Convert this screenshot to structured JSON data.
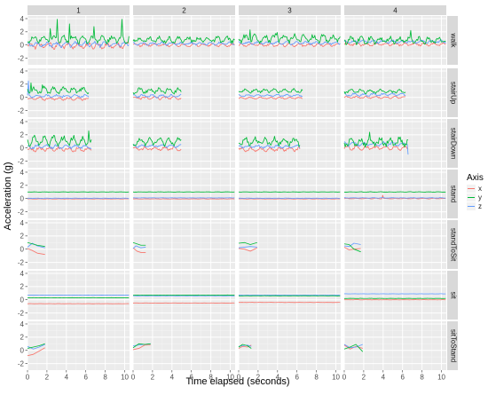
{
  "colors": {
    "x": "#F8766D",
    "y": "#00BA38",
    "z": "#619CFF",
    "panel": "#EBEBEB",
    "strip": "#D9D9D9",
    "grid_major": "#FFFFFF",
    "grid_minor": "#F5F5F5",
    "tick": "#4d4d4d"
  },
  "chart_data": {
    "type": "line",
    "facet_type": "grid",
    "xlabel": "Time elapsed (seconds)",
    "ylabel": "Acceleration (g)",
    "xlim": [
      0,
      10.5
    ],
    "ylim": [
      -3,
      4.4
    ],
    "x_ticks": [
      "0",
      "2",
      "4",
      "6",
      "8",
      "10"
    ],
    "y_ticks": [
      "-2",
      "0",
      "2",
      "4"
    ],
    "grid": true,
    "legend_position": "right",
    "legend": {
      "title": "Axis",
      "items": [
        {
          "name": "x",
          "color": "#F8766D"
        },
        {
          "name": "y",
          "color": "#00BA38"
        },
        {
          "name": "z",
          "color": "#619CFF"
        }
      ]
    },
    "columns": [
      "1",
      "2",
      "3",
      "4"
    ],
    "rows": [
      "walk",
      "stairUp",
      "stairDown",
      "stand",
      "standToSit",
      "sit",
      "sitToStand"
    ],
    "panels": [
      {
        "row": "walk",
        "col": "1",
        "duration": 10.5,
        "x": {
          "base": -0.1,
          "amp": 0.6
        },
        "y": {
          "base": 0.9,
          "amp": 0.9,
          "peaks": [
            [
              2.3,
              2.5
            ],
            [
              3.1,
              3.9
            ],
            [
              4.3,
              3.2
            ],
            [
              6.8,
              2.8
            ],
            [
              9.7,
              3.9
            ]
          ]
        },
        "z": {
          "base": 0.1,
          "amp": 0.5
        }
      },
      {
        "row": "walk",
        "col": "2",
        "duration": 10.5,
        "x": {
          "base": 0.0,
          "amp": 0.3
        },
        "y": {
          "base": 0.8,
          "amp": 0.6
        },
        "z": {
          "base": 0.2,
          "amp": 0.3
        }
      },
      {
        "row": "walk",
        "col": "3",
        "duration": 10.5,
        "x": {
          "base": 0.0,
          "amp": 0.3
        },
        "y": {
          "base": 1.0,
          "amp": 0.8,
          "peaks": [
            [
              1.2,
              2.3
            ],
            [
              4.0,
              1.9
            ]
          ]
        },
        "z": {
          "base": 0.3,
          "amp": 0.3
        }
      },
      {
        "row": "walk",
        "col": "4",
        "duration": 10.5,
        "x": {
          "base": 0.1,
          "amp": 0.3
        },
        "y": {
          "base": 0.7,
          "amp": 0.7,
          "peaks": [
            [
              6.8,
              2.2
            ]
          ]
        },
        "z": {
          "base": 0.5,
          "amp": 0.3
        }
      },
      {
        "row": "stairUp",
        "col": "1",
        "duration": 6.3,
        "x": {
          "base": -0.2,
          "amp": 0.3
        },
        "y": {
          "base": 1.1,
          "amp": 0.6,
          "peaks": [
            [
              0.4,
              2.2
            ],
            [
              1.5,
              1.9
            ]
          ]
        },
        "z": {
          "base": 0.2,
          "amp": 0.3,
          "peaks": [
            [
              0.1,
              2.5
            ]
          ]
        }
      },
      {
        "row": "stairUp",
        "col": "2",
        "duration": 5.0,
        "x": {
          "base": -0.1,
          "amp": 0.3
        },
        "y": {
          "base": 1.0,
          "amp": 0.6
        },
        "z": {
          "base": 0.2,
          "amp": 0.3
        }
      },
      {
        "row": "stairUp",
        "col": "3",
        "duration": 6.6,
        "x": {
          "base": -0.1,
          "amp": 0.2
        },
        "y": {
          "base": 1.0,
          "amp": 0.4
        },
        "z": {
          "base": 0.3,
          "amp": 0.2
        }
      },
      {
        "row": "stairUp",
        "col": "4",
        "duration": 6.3,
        "x": {
          "base": 0.0,
          "amp": 0.2
        },
        "y": {
          "base": 0.9,
          "amp": 0.4
        },
        "z": {
          "base": 0.4,
          "amp": 0.3
        }
      },
      {
        "row": "stairDown",
        "col": "1",
        "duration": 6.6,
        "x": {
          "base": -0.2,
          "amp": 0.5
        },
        "y": {
          "base": 1.1,
          "amp": 0.9,
          "peaks": [
            [
              6.3,
              2.6
            ]
          ]
        },
        "z": {
          "base": 0.2,
          "amp": 0.4
        }
      },
      {
        "row": "stairDown",
        "col": "2",
        "duration": 5.0,
        "x": {
          "base": -0.1,
          "amp": 0.4
        },
        "y": {
          "base": 1.0,
          "amp": 0.8
        },
        "z": {
          "base": 0.3,
          "amp": 0.3
        }
      },
      {
        "row": "stairDown",
        "col": "3",
        "duration": 6.3,
        "x": {
          "base": -0.2,
          "amp": 0.4
        },
        "y": {
          "base": 1.0,
          "amp": 0.8
        },
        "z": {
          "base": 0.2,
          "amp": 0.3
        }
      },
      {
        "row": "stairDown",
        "col": "4",
        "duration": 6.6,
        "x": {
          "base": 0.0,
          "amp": 0.4
        },
        "y": {
          "base": 0.9,
          "amp": 0.9,
          "peaks": [
            [
              2.6,
              2.4
            ]
          ]
        },
        "z": {
          "base": 0.6,
          "amp": 0.4,
          "peaks": [
            [
              6.6,
              -1.0
            ]
          ]
        }
      },
      {
        "row": "stand",
        "col": "1",
        "duration": 10.5,
        "x": {
          "base": -0.05,
          "amp": 0.03
        },
        "y": {
          "base": 1.0,
          "amp": 0.03
        },
        "z": {
          "base": 0.05,
          "amp": 0.03
        }
      },
      {
        "row": "stand",
        "col": "2",
        "duration": 10.5,
        "x": {
          "base": -0.05,
          "amp": 0.03
        },
        "y": {
          "base": 1.0,
          "amp": 0.03
        },
        "z": {
          "base": 0.1,
          "amp": 0.03
        }
      },
      {
        "row": "stand",
        "col": "3",
        "duration": 10.5,
        "x": {
          "base": -0.05,
          "amp": 0.03
        },
        "y": {
          "base": 1.0,
          "amp": 0.03
        },
        "z": {
          "base": 0.05,
          "amp": 0.03
        }
      },
      {
        "row": "stand",
        "col": "4",
        "duration": 10.5,
        "x": {
          "base": 0.0,
          "amp": 0.05,
          "peaks": [
            [
              4.0,
              0.5
            ]
          ]
        },
        "y": {
          "base": 1.0,
          "amp": 0.05
        },
        "z": {
          "base": 0.1,
          "amp": 0.05
        }
      },
      {
        "row": "standToSit",
        "col": "1",
        "duration": 1.8,
        "x": {
          "path": [
            [
              0,
              0.1
            ],
            [
              0.5,
              -0.2
            ],
            [
              1.0,
              -0.6
            ],
            [
              1.8,
              -0.8
            ]
          ]
        },
        "y": {
          "path": [
            [
              0,
              1.0
            ],
            [
              0.5,
              0.8
            ],
            [
              1.0,
              0.6
            ],
            [
              1.8,
              0.4
            ]
          ]
        },
        "z": {
          "path": [
            [
              0,
              0.3
            ],
            [
              0.5,
              0.9
            ],
            [
              1.0,
              0.5
            ],
            [
              1.8,
              0.2
            ]
          ]
        }
      },
      {
        "row": "standToSit",
        "col": "2",
        "duration": 1.3,
        "x": {
          "path": [
            [
              0,
              0.2
            ],
            [
              0.4,
              -0.3
            ],
            [
              0.8,
              -0.5
            ],
            [
              1.3,
              -0.5
            ]
          ]
        },
        "y": {
          "path": [
            [
              0,
              1.0
            ],
            [
              0.4,
              0.8
            ],
            [
              0.8,
              0.6
            ],
            [
              1.3,
              0.6
            ]
          ]
        },
        "z": {
          "path": [
            [
              0,
              0.1
            ],
            [
              0.3,
              0.5
            ],
            [
              0.8,
              0.2
            ],
            [
              1.3,
              0.3
            ]
          ]
        }
      },
      {
        "row": "standToSit",
        "col": "3",
        "duration": 1.9,
        "x": {
          "path": [
            [
              0,
              0.1
            ],
            [
              0.6,
              0.0
            ],
            [
              1.2,
              -0.3
            ],
            [
              1.9,
              0.2
            ]
          ]
        },
        "y": {
          "path": [
            [
              0,
              0.9
            ],
            [
              0.6,
              1.0
            ],
            [
              1.2,
              0.7
            ],
            [
              1.9,
              1.0
            ]
          ]
        },
        "z": {
          "path": [
            [
              0,
              0.2
            ],
            [
              0.6,
              0.3
            ],
            [
              1.2,
              0.4
            ],
            [
              1.9,
              0.3
            ]
          ]
        }
      },
      {
        "row": "standToSit",
        "col": "4",
        "duration": 1.7,
        "x": {
          "path": [
            [
              0,
              0.3
            ],
            [
              0.5,
              -0.1
            ],
            [
              1.0,
              0.0
            ],
            [
              1.7,
              0.1
            ]
          ]
        },
        "y": {
          "path": [
            [
              0,
              0.8
            ],
            [
              0.5,
              0.7
            ],
            [
              1.0,
              0.0
            ],
            [
              1.7,
              -0.4
            ]
          ]
        },
        "z": {
          "path": [
            [
              0,
              0.5
            ],
            [
              0.5,
              0.4
            ],
            [
              1.0,
              0.9
            ],
            [
              1.7,
              0.7
            ]
          ]
        }
      },
      {
        "row": "sit",
        "col": "1",
        "duration": 10.5,
        "x": {
          "base": -0.6,
          "amp": 0.02
        },
        "y": {
          "base": 0.3,
          "amp": 0.02
        },
        "z": {
          "base": 0.7,
          "amp": 0.02
        }
      },
      {
        "row": "sit",
        "col": "2",
        "duration": 10.5,
        "x": {
          "base": -0.5,
          "amp": 0.02
        },
        "y": {
          "base": 0.7,
          "amp": 0.02
        },
        "z": {
          "base": 0.6,
          "amp": 0.02
        }
      },
      {
        "row": "sit",
        "col": "3",
        "duration": 10.5,
        "x": {
          "base": -0.4,
          "amp": 0.02
        },
        "y": {
          "base": 0.6,
          "amp": 0.02
        },
        "z": {
          "base": 0.7,
          "amp": 0.02
        }
      },
      {
        "row": "sit",
        "col": "4",
        "duration": 10.5,
        "x": {
          "base": 0.0,
          "amp": 0.02
        },
        "y": {
          "base": 0.2,
          "amp": 0.02
        },
        "z": {
          "base": 0.9,
          "amp": 0.02
        }
      },
      {
        "row": "sitToStand",
        "col": "1",
        "duration": 1.8,
        "x": {
          "path": [
            [
              0,
              -0.8
            ],
            [
              0.6,
              -0.6
            ],
            [
              1.2,
              -0.1
            ],
            [
              1.8,
              0.4
            ]
          ]
        },
        "y": {
          "path": [
            [
              0,
              0.3
            ],
            [
              0.6,
              0.5
            ],
            [
              1.2,
              0.7
            ],
            [
              1.8,
              1.0
            ]
          ]
        },
        "z": {
          "path": [
            [
              0,
              0.6
            ],
            [
              0.6,
              0.2
            ],
            [
              1.2,
              0.5
            ],
            [
              1.8,
              0.9
            ]
          ]
        }
      },
      {
        "row": "sitToStand",
        "col": "2",
        "duration": 1.8,
        "x": {
          "path": [
            [
              0,
              0.1
            ],
            [
              0.6,
              0.3
            ],
            [
              1.2,
              0.8
            ],
            [
              1.8,
              0.8
            ]
          ]
        },
        "y": {
          "path": [
            [
              0,
              0.4
            ],
            [
              0.6,
              1.0
            ],
            [
              1.2,
              0.9
            ],
            [
              1.8,
              1.0
            ]
          ]
        },
        "z": {
          "path": [
            [
              0,
              0.7
            ],
            [
              0.6,
              0.8
            ],
            [
              1.2,
              0.9
            ],
            [
              1.8,
              1.0
            ]
          ]
        }
      },
      {
        "row": "sitToStand",
        "col": "3",
        "duration": 1.3,
        "x": {
          "path": [
            [
              0,
              0.3
            ],
            [
              0.4,
              0.6
            ],
            [
              0.9,
              0.5
            ],
            [
              1.3,
              0.8
            ]
          ]
        },
        "y": {
          "path": [
            [
              0,
              0.5
            ],
            [
              0.4,
              0.9
            ],
            [
              0.9,
              0.7
            ],
            [
              1.3,
              0.3
            ]
          ]
        },
        "z": {
          "path": [
            [
              0,
              0.6
            ],
            [
              0.4,
              0.7
            ],
            [
              0.9,
              0.8
            ],
            [
              1.3,
              0.6
            ]
          ]
        }
      },
      {
        "row": "sitToStand",
        "col": "4",
        "duration": 1.9,
        "x": {
          "path": [
            [
              0,
              0.8
            ],
            [
              0.6,
              0.2
            ],
            [
              1.2,
              0.6
            ],
            [
              1.9,
              0.3
            ]
          ]
        },
        "y": {
          "path": [
            [
              0,
              0.2
            ],
            [
              0.6,
              0.5
            ],
            [
              1.2,
              0.9
            ],
            [
              1.9,
              -0.2
            ]
          ]
        },
        "z": {
          "path": [
            [
              0,
              0.9
            ],
            [
              0.6,
              0.4
            ],
            [
              1.2,
              0.5
            ],
            [
              1.9,
              0.9
            ]
          ]
        }
      }
    ]
  }
}
